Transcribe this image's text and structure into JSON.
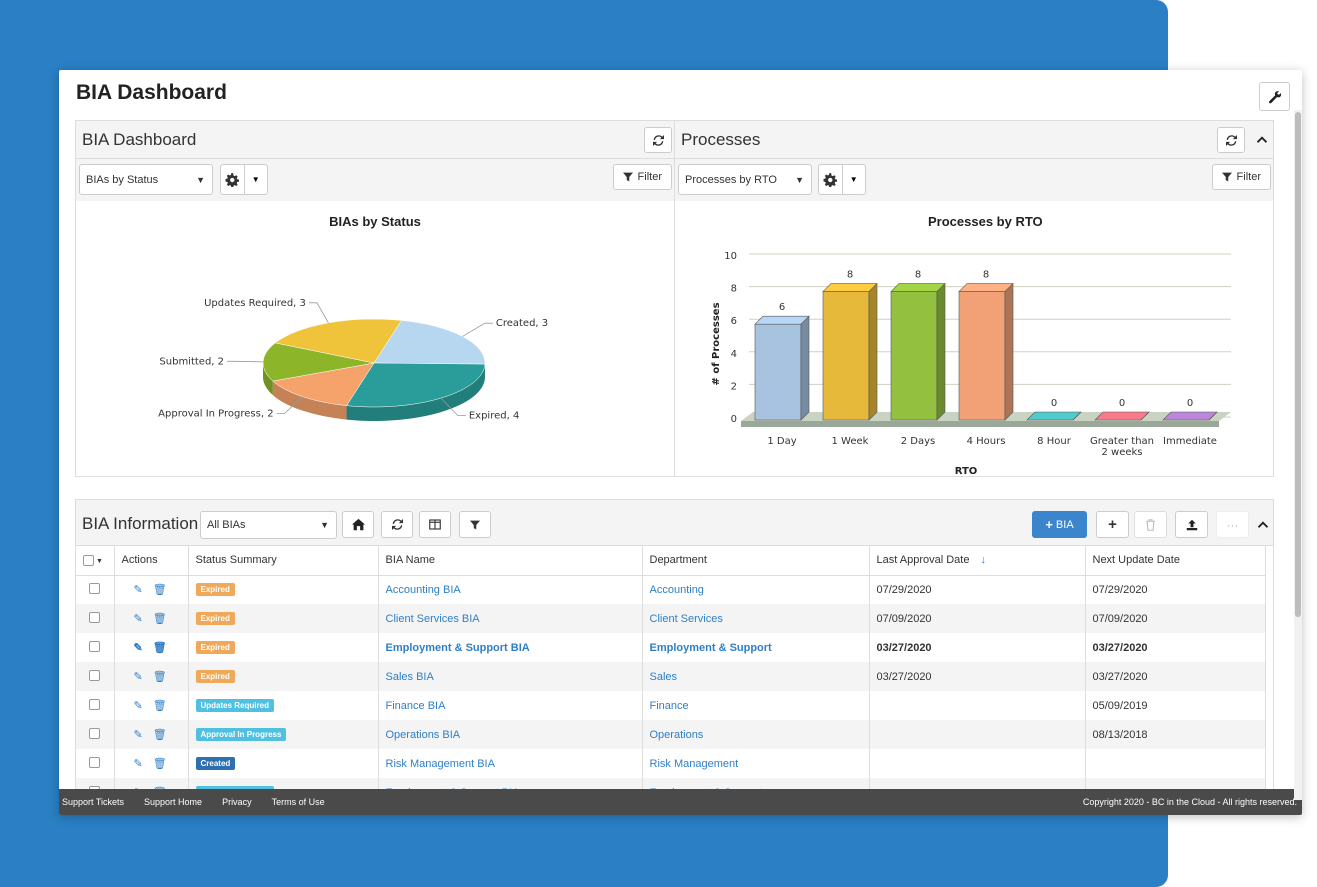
{
  "page": {
    "title": "BIA Dashboard"
  },
  "left_panel": {
    "title": "BIA Dashboard",
    "select_value": "BIAs by Status",
    "filter_label": "Filter"
  },
  "right_panel": {
    "title": "Processes",
    "select_value": "Processes by RTO",
    "filter_label": "Filter"
  },
  "chart_data": [
    {
      "type": "pie",
      "title": "BIAs by Status",
      "slices": [
        {
          "label": "Created",
          "value": 3,
          "text": "Created, 3",
          "color": "#b7d6f0"
        },
        {
          "label": "Expired",
          "value": 4,
          "text": "Expired, 4",
          "color": "#2a9d9a"
        },
        {
          "label": "Approval In Progress",
          "value": 2,
          "text": "Approval In Progress, 2",
          "color": "#f6a26b"
        },
        {
          "label": "Submitted",
          "value": 2,
          "text": "Submitted, 2",
          "color": "#8db52a"
        },
        {
          "label": "Updates Required",
          "value": 3,
          "text": "Updates Required, 3",
          "color": "#f0c43a"
        }
      ]
    },
    {
      "type": "bar",
      "title": "Processes by RTO",
      "xlabel": "RTO",
      "ylabel": "# of Processes",
      "ylim": [
        0,
        10
      ],
      "yticks": [
        "0",
        "2",
        "4",
        "6",
        "8",
        "10"
      ],
      "categories": [
        "1 Day",
        "1 Week",
        "2 Days",
        "4 Hours",
        "8 Hour",
        "Greater than 2 weeks",
        "Immediate"
      ],
      "category_lines": [
        [
          "1 Day"
        ],
        [
          "1 Week"
        ],
        [
          "2 Days"
        ],
        [
          "4 Hours"
        ],
        [
          "8 Hour"
        ],
        [
          "Greater than",
          "2 weeks"
        ],
        [
          "Immediate"
        ]
      ],
      "values": [
        6,
        8,
        8,
        8,
        0,
        0,
        0
      ],
      "colors": [
        "#a7c3e0",
        "#e6b93a",
        "#93c13f",
        "#f2a177",
        "#49b8b8",
        "#e16f7e",
        "#a97bc6"
      ],
      "grid": true
    }
  ],
  "bia_info": {
    "title": "BIA Information",
    "select_value": "All BIAs",
    "add_bia_label": "BIA",
    "columns": [
      "Actions",
      "Status Summary",
      "BIA Name",
      "Department",
      "Last Approval Date",
      "Next Update Date"
    ],
    "rows": [
      {
        "status": "Expired",
        "status_color": "#f0a95a",
        "name": "Accounting BIA",
        "department": "Accounting",
        "last_approval": "07/29/2020",
        "next_update": "07/29/2020"
      },
      {
        "status": "Expired",
        "status_color": "#f0a95a",
        "name": "Client Services BIA",
        "department": "Client Services",
        "last_approval": "07/09/2020",
        "next_update": "07/09/2020"
      },
      {
        "status": "Expired",
        "status_color": "#f0a95a",
        "name": "Employment & Support BIA",
        "department": "Employment & Support",
        "last_approval": "03/27/2020",
        "next_update": "03/27/2020"
      },
      {
        "status": "Expired",
        "status_color": "#f0a95a",
        "name": "Sales BIA",
        "department": "Sales",
        "last_approval": "03/27/2020",
        "next_update": "03/27/2020"
      },
      {
        "status": "Updates Required",
        "status_color": "#4fc0e0",
        "name": "Finance BIA",
        "department": "Finance",
        "last_approval": "",
        "next_update": "05/09/2019"
      },
      {
        "status": "Approval In Progress",
        "status_color": "#4fc0e0",
        "name": "Operations BIA",
        "department": "Operations",
        "last_approval": "",
        "next_update": "08/13/2018"
      },
      {
        "status": "Created",
        "status_color": "#2e6fb0",
        "name": "Risk Management BIA",
        "department": "Risk Management",
        "last_approval": "",
        "next_update": ""
      },
      {
        "status": "Updates Required",
        "status_color": "#4fc0e0",
        "name": "Employment & Support BIA",
        "department": "Employment & Support",
        "last_approval": "",
        "next_update": ""
      }
    ]
  },
  "footer": {
    "links": [
      "Support Tickets",
      "Support Home",
      "Privacy",
      "Terms of Use"
    ],
    "copyright": "Copyright 2020 - BC in the Cloud - All rights reserved."
  }
}
